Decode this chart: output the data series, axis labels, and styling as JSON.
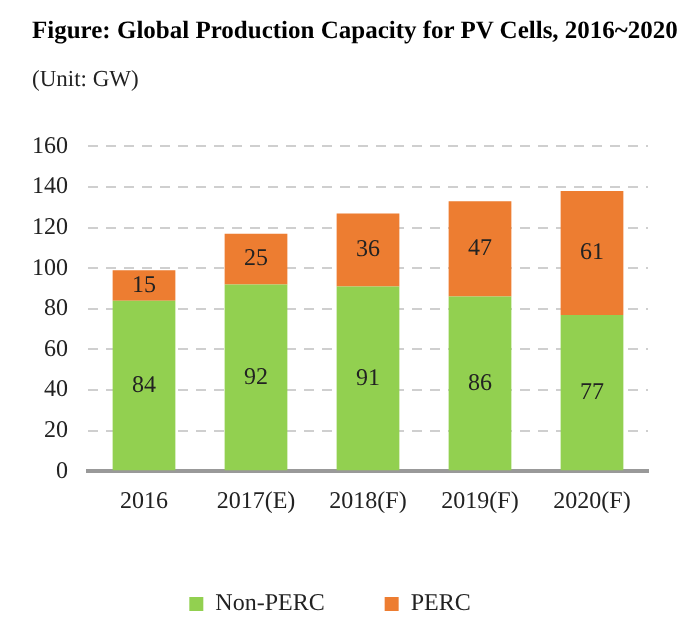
{
  "chart_data": {
    "type": "bar",
    "title": "Figure: Global Production Capacity for PV Cells, 2016~2020",
    "subtitle": "(Unit: GW)",
    "categories": [
      "2016",
      "2017(E)",
      "2018(F)",
      "2019(F)",
      "2020(F)"
    ],
    "series": [
      {
        "name": "Non-PERC",
        "color": "#92d050",
        "values": [
          84,
          92,
          91,
          86,
          77
        ]
      },
      {
        "name": "PERC",
        "color": "#ed7d31",
        "values": [
          15,
          25,
          36,
          47,
          61
        ]
      }
    ],
    "stacked": true,
    "ylim": [
      0,
      160
    ],
    "yticks": [
      0,
      20,
      40,
      60,
      80,
      100,
      120,
      140,
      160
    ],
    "grid": "y",
    "legend": "bottom",
    "data_labels": true
  }
}
